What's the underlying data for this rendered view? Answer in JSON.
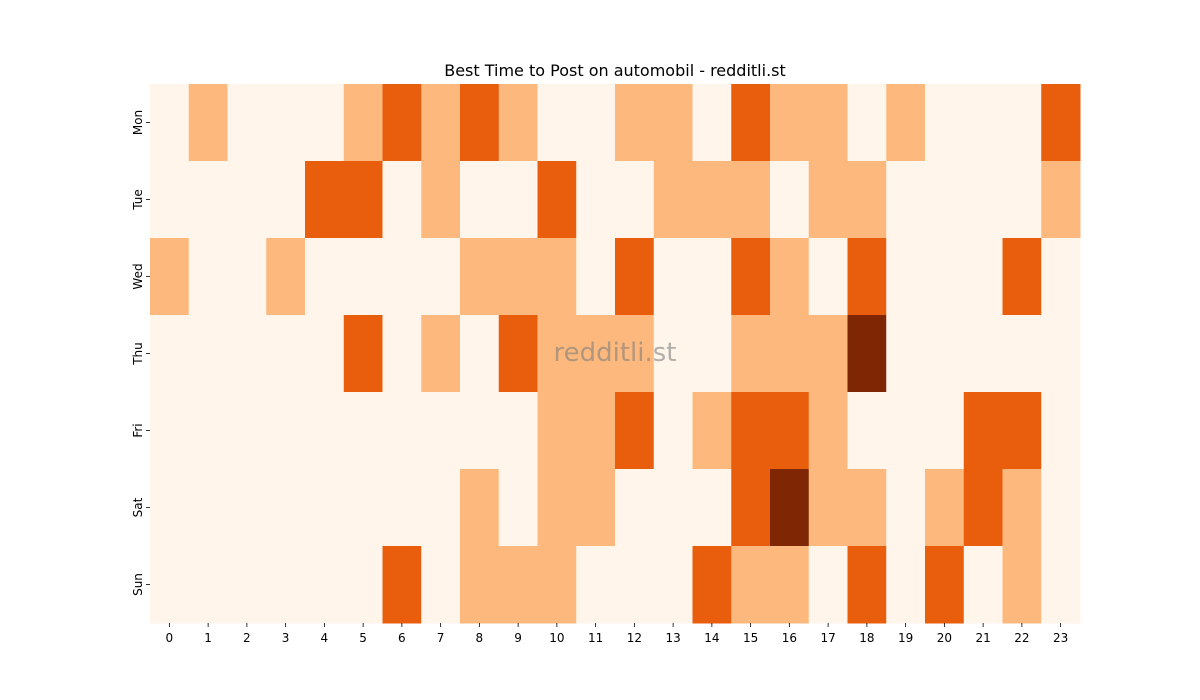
{
  "chart_data": {
    "type": "heatmap",
    "title": "Best Time to Post on automobil - redditli.st",
    "watermark": "redditli.st",
    "xlabel": "",
    "ylabel": "",
    "x_categories": [
      "0",
      "1",
      "2",
      "3",
      "4",
      "5",
      "6",
      "7",
      "8",
      "9",
      "10",
      "11",
      "12",
      "13",
      "14",
      "15",
      "16",
      "17",
      "18",
      "19",
      "20",
      "21",
      "22",
      "23"
    ],
    "y_categories": [
      "Mon",
      "Tue",
      "Wed",
      "Thu",
      "Fri",
      "Sat",
      "Sun"
    ],
    "colorbar": false,
    "palette": [
      "#fff5eb",
      "#fdb97d",
      "#e95e0d",
      "#7f2704"
    ],
    "values": [
      [
        0,
        1,
        0,
        0,
        0,
        1,
        2,
        1,
        2,
        1,
        0,
        0,
        1,
        1,
        0,
        2,
        1,
        1,
        0,
        1,
        0,
        0,
        0,
        2
      ],
      [
        0,
        0,
        0,
        0,
        2,
        2,
        0,
        1,
        0,
        0,
        2,
        0,
        0,
        1,
        1,
        1,
        0,
        1,
        1,
        0,
        0,
        0,
        0,
        1
      ],
      [
        1,
        0,
        0,
        1,
        0,
        0,
        0,
        0,
        1,
        1,
        1,
        0,
        2,
        0,
        0,
        2,
        1,
        0,
        2,
        0,
        0,
        0,
        2,
        0
      ],
      [
        0,
        0,
        0,
        0,
        0,
        2,
        0,
        1,
        0,
        2,
        1,
        1,
        1,
        0,
        0,
        1,
        1,
        1,
        3,
        0,
        0,
        0,
        0,
        0
      ],
      [
        0,
        0,
        0,
        0,
        0,
        0,
        0,
        0,
        0,
        0,
        1,
        1,
        2,
        0,
        1,
        2,
        2,
        1,
        0,
        0,
        0,
        2,
        2,
        0
      ],
      [
        0,
        0,
        0,
        0,
        0,
        0,
        0,
        0,
        1,
        0,
        1,
        1,
        0,
        0,
        0,
        2,
        3,
        1,
        1,
        0,
        1,
        2,
        1,
        0
      ],
      [
        0,
        0,
        0,
        0,
        0,
        0,
        2,
        0,
        1,
        1,
        1,
        0,
        0,
        0,
        2,
        1,
        1,
        0,
        2,
        0,
        2,
        0,
        1,
        0
      ]
    ]
  }
}
